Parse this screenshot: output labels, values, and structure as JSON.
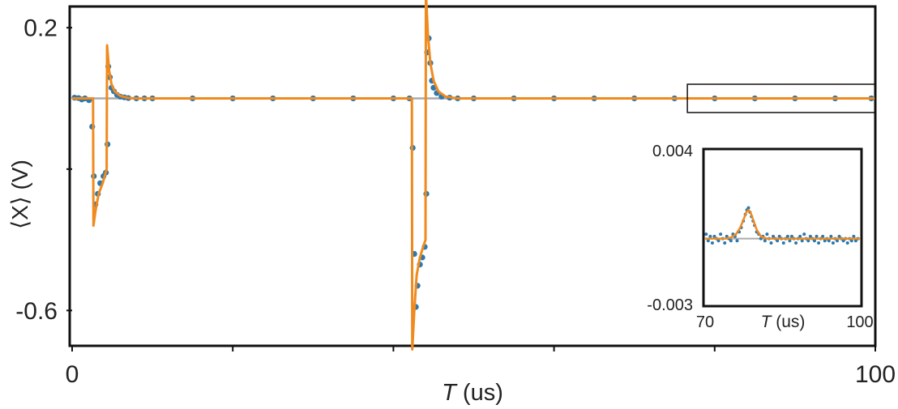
{
  "chart_data": [
    {
      "type": "scatter",
      "title": "",
      "xlabel_italic": "T",
      "xlabel_unit": " (us)",
      "ylabel": "⟨X⟩ (V)",
      "xlim": [
        0,
        100
      ],
      "ylim": [
        -0.7,
        0.26
      ],
      "x_tick_labels": [
        {
          "value": 0,
          "label": "0"
        },
        {
          "value": 100,
          "label": "100"
        }
      ],
      "x_minor_ticks": [
        20,
        40,
        60,
        80
      ],
      "y_tick_labels": [
        {
          "value": 0.2,
          "label": "0.2"
        },
        {
          "value": -0.6,
          "label": "-0.6"
        }
      ],
      "y_minor_ticks": [
        -0.2
      ],
      "reference_line": 0,
      "series": [
        {
          "kind": "measured",
          "marker": "dots",
          "color": "#2e78ad",
          "points": [
            [
              0.3,
              0.002
            ],
            [
              0.8,
              0.001
            ],
            [
              1.2,
              -0.003
            ],
            [
              1.6,
              0.0
            ],
            [
              2.1,
              -0.005
            ],
            [
              2.5,
              -0.08
            ],
            [
              2.7,
              -0.22
            ],
            [
              2.9,
              -0.3
            ],
            [
              3.2,
              -0.27
            ],
            [
              3.5,
              -0.24
            ],
            [
              3.9,
              -0.22
            ],
            [
              4.2,
              -0.21
            ],
            [
              4.4,
              -0.13
            ],
            [
              4.5,
              0.09
            ],
            [
              4.7,
              0.06
            ],
            [
              4.9,
              0.03
            ],
            [
              5.2,
              0.02
            ],
            [
              5.6,
              0.01
            ],
            [
              6.0,
              0.005
            ],
            [
              6.5,
              0.003
            ],
            [
              7.0,
              0.001
            ],
            [
              8.0,
              0.0
            ],
            [
              9.0,
              0.0
            ],
            [
              10.0,
              0.0
            ],
            [
              15.0,
              0.0
            ],
            [
              20.0,
              0.0
            ],
            [
              25.0,
              0.0
            ],
            [
              30.0,
              0.0
            ],
            [
              35.0,
              0.0
            ],
            [
              40.0,
              0.0
            ],
            [
              42.0,
              0.0
            ],
            [
              42.4,
              -0.14
            ],
            [
              42.6,
              -0.44
            ],
            [
              42.8,
              -0.59
            ],
            [
              43.0,
              -0.53
            ],
            [
              43.3,
              -0.47
            ],
            [
              43.6,
              -0.45
            ],
            [
              43.9,
              -0.42
            ],
            [
              44.1,
              -0.27
            ],
            [
              44.2,
              0.13
            ],
            [
              44.4,
              0.17
            ],
            [
              44.6,
              0.1
            ],
            [
              44.8,
              0.05
            ],
            [
              45.0,
              0.03
            ],
            [
              45.4,
              0.015
            ],
            [
              46.0,
              0.005
            ],
            [
              47.0,
              0.002
            ],
            [
              48.0,
              0.0
            ],
            [
              50.0,
              0.0
            ],
            [
              55.0,
              0.0
            ],
            [
              60.0,
              0.0
            ],
            [
              65.0,
              0.0
            ],
            [
              70.0,
              0.0
            ],
            [
              75.0,
              0.0
            ],
            [
              80.0,
              0.0
            ],
            [
              85.0,
              0.0
            ],
            [
              90.0,
              0.0
            ],
            [
              95.0,
              0.0
            ],
            [
              99.5,
              0.0
            ]
          ]
        },
        {
          "kind": "fit",
          "marker": "line",
          "color": "#f08a1e",
          "points": [
            [
              0.0,
              0.0
            ],
            [
              2.6,
              0.0
            ],
            [
              2.65,
              -0.36
            ],
            [
              2.9,
              -0.32
            ],
            [
              3.3,
              -0.27
            ],
            [
              3.8,
              -0.24
            ],
            [
              4.3,
              -0.2
            ],
            [
              4.35,
              0.15
            ],
            [
              4.6,
              0.08
            ],
            [
              4.9,
              0.04
            ],
            [
              5.3,
              0.02
            ],
            [
              6.0,
              0.007
            ],
            [
              7.0,
              0.001
            ],
            [
              8.0,
              0.0
            ],
            [
              42.3,
              0.0
            ],
            [
              42.35,
              -0.71
            ],
            [
              42.6,
              -0.6
            ],
            [
              42.9,
              -0.5
            ],
            [
              43.3,
              -0.45
            ],
            [
              43.7,
              -0.42
            ],
            [
              44.0,
              -0.4
            ],
            [
              44.05,
              0.3
            ],
            [
              44.3,
              0.18
            ],
            [
              44.6,
              0.1
            ],
            [
              45.0,
              0.05
            ],
            [
              45.6,
              0.02
            ],
            [
              46.5,
              0.005
            ],
            [
              48.0,
              0.0
            ],
            [
              100.0,
              0.0
            ]
          ]
        }
      ],
      "highlight_region": {
        "xlim": [
          76.6,
          100
        ],
        "ylim": [
          -0.04,
          0.04
        ]
      }
    },
    {
      "type": "scatter",
      "role": "inset",
      "xlabel_italic": "T",
      "xlabel_unit": " (us)",
      "xlim": [
        70,
        100
      ],
      "ylim": [
        -0.003,
        0.004
      ],
      "x_tick_labels": [
        {
          "value": 70,
          "label": "70"
        },
        {
          "value": 100,
          "label": "100"
        }
      ],
      "y_tick_labels": [
        {
          "value": 0.004,
          "label": "0.004"
        },
        {
          "value": -0.003,
          "label": "-0.003"
        }
      ],
      "reference_line": 0,
      "series": [
        {
          "kind": "measured",
          "marker": "dots",
          "color": "#2e78ad",
          "points": [
            [
              70.2,
              0.0002
            ],
            [
              70.6,
              -0.0001
            ],
            [
              71.0,
              0.0001
            ],
            [
              71.4,
              -0.0002
            ],
            [
              71.8,
              0.0001
            ],
            [
              72.2,
              0.0
            ],
            [
              72.6,
              -0.0001
            ],
            [
              73.0,
              0.0002
            ],
            [
              73.4,
              0.0
            ],
            [
              73.8,
              -0.0002
            ],
            [
              74.2,
              0.0001
            ],
            [
              74.6,
              0.0
            ],
            [
              75.0,
              -0.0001
            ],
            [
              75.4,
              0.0002
            ],
            [
              75.8,
              0.0001
            ],
            [
              76.2,
              -0.0001
            ],
            [
              76.6,
              0.0003
            ],
            [
              77.0,
              0.0005
            ],
            [
              77.4,
              0.0008
            ],
            [
              77.8,
              0.0011
            ],
            [
              78.1,
              0.0013
            ],
            [
              78.4,
              0.0014
            ],
            [
              78.7,
              0.0012
            ],
            [
              79.0,
              0.001
            ],
            [
              79.3,
              0.0008
            ],
            [
              79.6,
              0.0006
            ],
            [
              80.0,
              0.0003
            ],
            [
              80.4,
              0.0002
            ],
            [
              80.8,
              0.0
            ],
            [
              81.2,
              0.0001
            ],
            [
              81.6,
              -0.0001
            ],
            [
              82.0,
              0.0002
            ],
            [
              82.4,
              0.0
            ],
            [
              82.8,
              -0.0002
            ],
            [
              83.2,
              0.0001
            ],
            [
              83.6,
              0.0
            ],
            [
              84.0,
              -0.0001
            ],
            [
              84.4,
              0.0001
            ],
            [
              84.8,
              0.0
            ],
            [
              85.2,
              -0.0002
            ],
            [
              85.6,
              0.0
            ],
            [
              86.0,
              0.0001
            ],
            [
              86.4,
              -0.0001
            ],
            [
              86.8,
              0.0001
            ],
            [
              87.2,
              0.0
            ],
            [
              87.6,
              -0.0002
            ],
            [
              88.0,
              0.0
            ],
            [
              88.4,
              0.0001
            ],
            [
              88.8,
              -0.0001
            ],
            [
              89.2,
              0.0002
            ],
            [
              89.6,
              0.0
            ],
            [
              90.0,
              -0.0001
            ],
            [
              90.4,
              0.0001
            ],
            [
              90.8,
              0.0
            ],
            [
              91.2,
              -0.0001
            ],
            [
              91.6,
              0.0001
            ],
            [
              92.0,
              -0.0002
            ],
            [
              92.4,
              0.0
            ],
            [
              92.8,
              0.0001
            ],
            [
              93.2,
              -0.0001
            ],
            [
              93.6,
              0.0
            ],
            [
              94.0,
              -0.0001
            ],
            [
              94.4,
              0.0001
            ],
            [
              94.8,
              -0.0002
            ],
            [
              95.2,
              0.0
            ],
            [
              95.6,
              -0.0001
            ],
            [
              96.0,
              0.0001
            ],
            [
              96.4,
              0.0
            ],
            [
              96.8,
              -0.0001
            ],
            [
              97.2,
              0.0
            ],
            [
              97.6,
              -0.0002
            ],
            [
              98.0,
              0.0
            ],
            [
              98.4,
              -0.0001
            ],
            [
              98.8,
              0.0001
            ],
            [
              99.2,
              -0.0001
            ],
            [
              99.6,
              0.0
            ]
          ]
        },
        {
          "kind": "fit",
          "marker": "line",
          "color": "#f08a1e",
          "points": [
            [
              70.0,
              0.0
            ],
            [
              74.0,
              0.0
            ],
            [
              75.0,
              5e-05
            ],
            [
              76.0,
              0.0002
            ],
            [
              76.8,
              0.0005
            ],
            [
              77.5,
              0.0009
            ],
            [
              78.0,
              0.0012
            ],
            [
              78.4,
              0.0013
            ],
            [
              78.8,
              0.0012
            ],
            [
              79.4,
              0.0008
            ],
            [
              80.0,
              0.0004
            ],
            [
              80.8,
              0.0001
            ],
            [
              82.0,
              0.0
            ],
            [
              100.0,
              0.0
            ]
          ]
        }
      ]
    }
  ]
}
